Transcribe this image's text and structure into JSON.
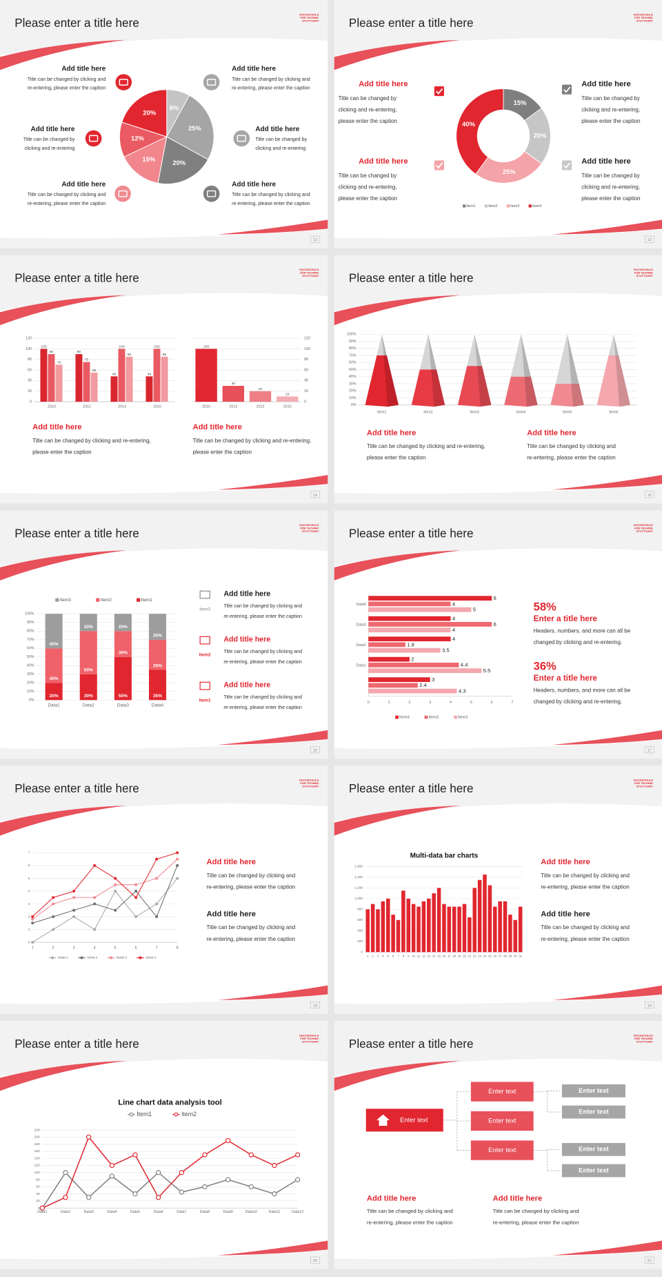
{
  "slides": [
    {
      "page": 12,
      "title": "Please enter a title here",
      "logo": [
        "HOCHSCHULE",
        "FÜR TECHNIK",
        "STUTTGART"
      ],
      "chart": {
        "type": "pie",
        "values": [
          8,
          25,
          20,
          15,
          12,
          20
        ],
        "value_labels": [
          "8%",
          "25%",
          "20%",
          "15%",
          "12%",
          "20%"
        ],
        "colors": [
          "#c4c4c4",
          "#a5a5a5",
          "#808080",
          "#f1868c",
          "#ea5a63",
          "#e1262f"
        ]
      },
      "blocks": [
        {
          "title": "Add title here",
          "text": [
            "Title can be changed by clicking and",
            "re-entering, please enter the caption"
          ]
        },
        {
          "title": "Add title here",
          "text": [
            "Title can be changed by",
            "clicking and re-entering"
          ]
        },
        {
          "title": "Add title here",
          "text": [
            "Title can be changed by clicking and",
            "re-entering, please enter the caption"
          ]
        },
        {
          "title": "Add title here",
          "text": [
            "Title can be changed by clicking and",
            "re-entering, please enter the caption"
          ]
        },
        {
          "title": "Add title here",
          "text": [
            "Title can be changed by",
            "clicking and re-entering"
          ]
        },
        {
          "title": "Add title here",
          "text": [
            "Title can be changed by clicking and",
            "re-entering, please enter the caption"
          ]
        }
      ]
    },
    {
      "page": 13,
      "title": "Please enter a title here",
      "logo": [
        "HOCHSCHULE",
        "FÜR TECHNIK",
        "STUTTGART"
      ],
      "chart": {
        "type": "donut",
        "categories": [
          "Item1",
          "Item2",
          "Item3",
          "Item4"
        ],
        "values": [
          15,
          20,
          25,
          40
        ],
        "value_labels": [
          "15%",
          "20%",
          "25%",
          "40%"
        ],
        "colors": [
          "#7f7f7f",
          "#c6c6c6",
          "#f4a3a8",
          "#e1262f"
        ]
      },
      "blocks": [
        {
          "title": "Add title here",
          "text": [
            "Title can be changed by",
            "clicking and re-entering,",
            "please enter the caption"
          ]
        },
        {
          "title": "Add title here",
          "text": [
            "Title can be changed by",
            "clicking and re-entering,",
            "please enter the caption"
          ]
        },
        {
          "title": "Add title here",
          "text": [
            "Title can be changed by",
            "clicking and re-entering,",
            "please enter the caption"
          ]
        },
        {
          "title": "Add title here",
          "text": [
            "Title can be changed by",
            "clicking and re-entering,",
            "please enter the caption"
          ]
        }
      ]
    },
    {
      "page": 14,
      "title": "Please enter a title here",
      "logo": [
        "HOCHSCHULE",
        "FÜR TECHNIK",
        "STUTTGART"
      ],
      "charts": [
        {
          "type": "bar",
          "categories": [
            "2010",
            "2012",
            "2014",
            "2016"
          ],
          "series": [
            {
              "color": "#d9262e",
              "values": [
                100,
                90,
                48,
                48
              ]
            },
            {
              "color": "#ea5a63",
              "values": [
                90,
                75,
                100,
                100
              ]
            },
            {
              "color": "#f19aa0",
              "values": [
                70,
                55,
                85,
                85
              ]
            }
          ],
          "ylim": [
            0,
            120
          ],
          "yticks": [
            0,
            20,
            40,
            60,
            80,
            100,
            120
          ],
          "grid": true,
          "data_labels": true
        },
        {
          "type": "bar",
          "categories": [
            "2016",
            "2014",
            "2012",
            "2010"
          ],
          "values": [
            100,
            30,
            20,
            10
          ],
          "colors": [
            "#e1262f",
            "#e8505a",
            "#ee7f86",
            "#f4adb2"
          ],
          "ylim": [
            0,
            120
          ],
          "yticks": [
            0,
            20,
            40,
            60,
            80,
            100,
            120
          ],
          "grid": true,
          "data_labels": true,
          "y_axis_side": "right"
        }
      ],
      "blocks": [
        {
          "title": "Add title here",
          "text": [
            "Title can be changed by clicking and re-entering,",
            "please enter the caption"
          ]
        },
        {
          "title": "Add title here",
          "text": [
            "Title can be changed by clicking and re-entering,",
            "please enter the caption"
          ]
        }
      ]
    },
    {
      "page": 15,
      "title": "Please enter a title here",
      "logo": [
        "HOCHSCHULE",
        "FÜR TECHNIK",
        "STUTTGART"
      ],
      "chart": {
        "type": "pyramid",
        "categories": [
          "Item1",
          "Item2",
          "Item3",
          "Item4",
          "Item5",
          "Item6"
        ],
        "values": [
          70,
          50,
          55,
          40,
          30,
          70
        ],
        "colors": [
          "#e1262f",
          "#e83a44",
          "#e84a54",
          "#ec6b73",
          "#f08a90",
          "#f4a8ad"
        ],
        "ylim": [
          0,
          100
        ],
        "yticks": [
          {
            "value": 0,
            "label": "0%"
          },
          {
            "value": 10,
            "label": "10%"
          },
          {
            "value": 20,
            "label": "20%"
          },
          {
            "value": 30,
            "label": "30%"
          },
          {
            "value": 40,
            "label": "40%"
          },
          {
            "value": 50,
            "label": "50%"
          },
          {
            "value": 60,
            "label": "60%"
          },
          {
            "value": 70,
            "label": "70%"
          },
          {
            "value": 80,
            "label": "80%"
          },
          {
            "value": 90,
            "label": "90%"
          },
          {
            "value": 100,
            "label": "100%"
          }
        ],
        "grid": true
      },
      "blocks": [
        {
          "title": "Add title here",
          "text": [
            "Title can be changed by clicking and re-entering,",
            "please enter the caption"
          ]
        },
        {
          "title": "Add title here",
          "text": [
            "Title can be changed by clicking and",
            "re-entering, please enter the caption"
          ]
        }
      ]
    },
    {
      "page": 16,
      "title": "Please enter a title here",
      "logo": [
        "HOCHSCHULE",
        "FÜR TECHNIK",
        "STUTTGART"
      ],
      "chart": {
        "type": "stacked_bar",
        "categories": [
          "Data1",
          "Data2",
          "Data3",
          "Data4"
        ],
        "series": [
          {
            "name": "Item3",
            "color": "#9d9d9d",
            "values": [
              40,
              20,
              20,
              30
            ],
            "value_labels": [
              "40%",
              "20%",
              "20%",
              "30%"
            ]
          },
          {
            "name": "Item2",
            "color": "#ef626a",
            "values": [
              40,
              50,
              30,
              35
            ],
            "value_labels": [
              "40%",
              "50%",
              "30%",
              "35%"
            ]
          },
          {
            "name": "Item1",
            "color": "#e1262f",
            "values": [
              20,
              30,
              50,
              35
            ],
            "value_labels": [
              "20%",
              "30%",
              "50%",
              "35%"
            ]
          }
        ],
        "ylim": [
          0,
          100
        ],
        "yticks": [
          {
            "value": 0,
            "label": "0%"
          },
          {
            "value": 10,
            "label": "10%"
          },
          {
            "value": 20,
            "label": "20%"
          },
          {
            "value": 30,
            "label": "30%"
          },
          {
            "value": 40,
            "label": "40%"
          },
          {
            "value": 50,
            "label": "50%"
          },
          {
            "value": 60,
            "label": "60%"
          },
          {
            "value": 70,
            "label": "70%"
          },
          {
            "value": 80,
            "label": "80%"
          },
          {
            "value": 90,
            "label": "90%"
          },
          {
            "value": 100,
            "label": "100%"
          }
        ],
        "grid": true
      },
      "blocks": [
        {
          "title": "Add title here",
          "icon_label": "Item3",
          "text": [
            "Title can be changed by clicking and",
            "re-entering, please enter the caption"
          ]
        },
        {
          "title": "Add title here",
          "icon_label": "Item2",
          "text": [
            "Title can be changed by clicking and",
            "re-entering, please enter the caption"
          ]
        },
        {
          "title": "Add title here",
          "icon_label": "Item1",
          "text": [
            "Title can be changed by clicking and",
            "re-entering, please enter the caption"
          ]
        }
      ]
    },
    {
      "page": 17,
      "title": "Please enter a title here",
      "logo": [
        "HOCHSCHULE",
        "FÜR TECHNIK",
        "STUTTGART"
      ],
      "chart": {
        "type": "hbar",
        "categories": [
          "Data4",
          "Data3",
          "Data2",
          "Data1",
          null
        ],
        "series": [
          {
            "name": "Item3",
            "color": "#e1262f",
            "values": [
              6,
              4,
              4,
              2,
              3
            ]
          },
          {
            "name": "Item2",
            "color": "#ef6870",
            "values": [
              4,
              6,
              1.8,
              4.4,
              2.4
            ]
          },
          {
            "name": "Item1",
            "color": "#f4a8ad",
            "values": [
              5,
              4,
              3.5,
              5.5,
              4.3
            ]
          }
        ],
        "xlim": [
          0,
          7
        ],
        "xticks": [
          0,
          1,
          2,
          3,
          4,
          5,
          6,
          7
        ],
        "data_labels": true
      },
      "stats": [
        {
          "figure": "58%",
          "title": "Enter a title here",
          "text": [
            "Headers, numbers, and more can all be",
            "changed by clicking and re-entering."
          ]
        },
        {
          "figure": "36%",
          "title": "Enter a title here",
          "text": [
            "Headers, numbers, and more can all be",
            "changed by clicking and re-entering."
          ]
        }
      ]
    },
    {
      "page": 18,
      "title": "Please enter a title here",
      "logo": [
        "HOCHSCHULE",
        "FÜR TECHNIK",
        "STUTTGART"
      ],
      "chart": {
        "type": "line",
        "x": [
          1,
          2,
          3,
          4,
          5,
          6,
          7,
          8
        ],
        "xlim": [
          1,
          8
        ],
        "xticks": [
          1,
          2,
          3,
          4,
          5,
          6,
          7,
          8
        ],
        "series": [
          {
            "name": "Series 1",
            "color": "#a9a9a9",
            "values": [
              0,
              1,
              2,
              1,
              4,
              2,
              3,
              5
            ]
          },
          {
            "name": "Series 2",
            "color": "#6f6f6f",
            "values": [
              1.5,
              2,
              2.5,
              3,
              2.5,
              4,
              2,
              6
            ]
          },
          {
            "name": "Series 3",
            "color": "#f08a90",
            "values": [
              1.8,
              3,
              3.5,
              3.5,
              4.5,
              4.5,
              5,
              6.5
            ]
          },
          {
            "name": "Series 4",
            "color": "#e1262f",
            "values": [
              2,
              3.5,
              4,
              6,
              5,
              3.5,
              6.5,
              7
            ]
          }
        ],
        "ylim": [
          0,
          7
        ],
        "yticks": [
          0,
          1,
          2,
          3,
          4,
          5,
          6,
          7
        ],
        "grid": true
      },
      "blocks": [
        {
          "title": "Add title here",
          "text": [
            "Title can be changed by clicking and",
            "re-entering, please enter the caption"
          ]
        },
        {
          "title": "Add title here",
          "text": [
            "Title can be changed by clicking and",
            "re-entering, please enter the caption"
          ]
        }
      ]
    },
    {
      "page": 19,
      "title": "Please enter a title here",
      "logo": [
        "HOCHSCHULE",
        "FÜR TECHNIK",
        "STUTTGART"
      ],
      "chart": {
        "type": "bar",
        "title": "Multi-data bar charts",
        "categories": [
          "1",
          "2",
          "3",
          "4",
          "5",
          "6",
          "7",
          "8",
          "9",
          "10",
          "11",
          "12",
          "13",
          "14",
          "15",
          "16",
          "17",
          "18",
          "19",
          "20",
          "21",
          "22",
          "23",
          "24",
          "25",
          "26",
          "27",
          "28",
          "29",
          "30",
          "31"
        ],
        "values": [
          800,
          900,
          800,
          950,
          1000,
          700,
          600,
          1150,
          1000,
          900,
          850,
          950,
          1000,
          1100,
          1200,
          900,
          850,
          850,
          850,
          900,
          650,
          1200,
          1350,
          1450,
          1250,
          850,
          950,
          950,
          700,
          600,
          850
        ],
        "color": "#e1262f",
        "ylim": [
          0,
          1600
        ],
        "yticks": [
          0,
          200,
          400,
          600,
          800,
          {
            "value": 1000,
            "label": "1,000"
          },
          {
            "value": 1200,
            "label": "1,200"
          },
          {
            "value": 1400,
            "label": "1,400"
          },
          {
            "value": 1600,
            "label": "1,600"
          }
        ],
        "grid": true
      },
      "blocks": [
        {
          "title": "Add title here",
          "text": [
            "Title can be changed by clicking and",
            "re-entering, please enter the caption"
          ]
        },
        {
          "title": "Add title here",
          "text": [
            "Title can be changed by clicking and",
            "re-entering, please enter the caption"
          ]
        }
      ]
    },
    {
      "page": 20,
      "title": "Please enter a title here",
      "logo": [
        "HOCHSCHULE",
        "FÜR TECHNIK",
        "STUTTGART"
      ],
      "chart": {
        "type": "line",
        "title": "Line chart data analysis tool",
        "categories": [
          "Data1",
          "Data2",
          "Data3",
          "Data4",
          "Data5",
          "Data6",
          "Data7",
          "Data8",
          "Data9",
          "Data10",
          "Data11",
          "Data12"
        ],
        "series": [
          {
            "name": "Item1",
            "color": "#7f7f7f",
            "values": [
              0,
              100,
              30,
              90,
              40,
              100,
              45,
              60,
              80,
              60,
              40,
              80
            ]
          },
          {
            "name": "Item2",
            "color": "#e1262f",
            "values": [
              0,
              30,
              200,
              120,
              150,
              30,
              100,
              150,
              190,
              150,
              120,
              150
            ]
          }
        ],
        "ylim": [
          0,
          220
        ],
        "yticks": [
          0,
          20,
          40,
          60,
          80,
          100,
          120,
          140,
          160,
          180,
          200,
          220
        ],
        "grid": true,
        "markers": "hollow"
      }
    },
    {
      "page": 21,
      "title": "Please enter a title here",
      "logo": [
        "HOCHSCHULE",
        "FÜR TECHNIK",
        "STUTTGART"
      ],
      "diagram": {
        "root": "Enter text",
        "middle": [
          "Enter text",
          "Enter text",
          "Enter text"
        ],
        "leaves": [
          "Enter text",
          "Enter text",
          "Enter text",
          "Enter text"
        ]
      },
      "blocks": [
        {
          "title": "Add title here",
          "text": [
            "Title can be changed by clicking and",
            "re-entering, please enter the caption"
          ]
        },
        {
          "title": "Add title here",
          "text": [
            "Title can be changed by clicking and",
            "re-entering, please enter the caption"
          ]
        }
      ]
    }
  ]
}
